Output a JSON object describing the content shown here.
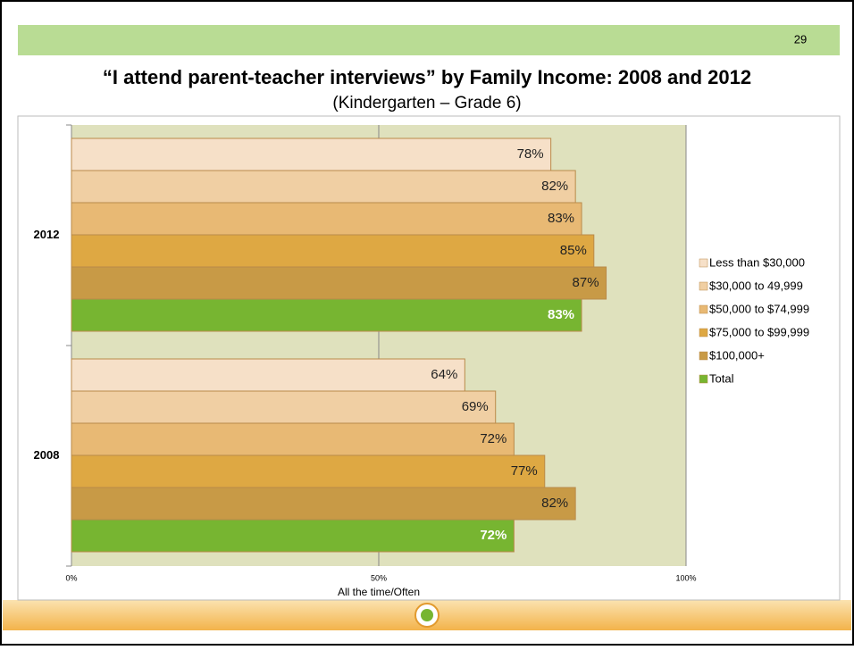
{
  "page_number": "29",
  "chart_data": {
    "type": "hbar",
    "title": "“I attend parent-teacher interviews” by Family Income: 2008 and 2012",
    "subtitle": "(Kindergarten – Grade 6)",
    "x_label": "All the time/Often",
    "categories": [
      "2012",
      "2008"
    ],
    "series": [
      {
        "name": "Less than $30,000",
        "color": "#f6e0c8",
        "values": [
          78,
          64
        ],
        "value_labels": [
          "78%",
          "64%"
        ]
      },
      {
        "name": "$30,000 to 49,999",
        "color": "#f0cfa3",
        "values": [
          82,
          69
        ],
        "value_labels": [
          "82%",
          "69%"
        ]
      },
      {
        "name": "$50,000 to $74,999",
        "color": "#e8b974",
        "values": [
          83,
          72
        ],
        "value_labels": [
          "83%",
          "72%"
        ]
      },
      {
        "name": "$75,000 to $99,999",
        "color": "#dea843",
        "values": [
          85,
          77
        ],
        "value_labels": [
          "85%",
          "77%"
        ]
      },
      {
        "name": "$100,000+",
        "color": "#c89a46",
        "values": [
          87,
          82
        ],
        "value_labels": [
          "87%",
          "82%"
        ]
      },
      {
        "name": "Total",
        "color": "#77b531",
        "values": [
          83,
          72
        ],
        "value_labels": [
          "83%",
          "72%"
        ]
      }
    ],
    "xlim": [
      0,
      100
    ],
    "xticks": [
      {
        "value": 0,
        "label": "0%"
      },
      {
        "value": 50,
        "label": "50%"
      },
      {
        "value": 100,
        "label": "100%"
      }
    ],
    "grid": true,
    "legend": "right"
  }
}
